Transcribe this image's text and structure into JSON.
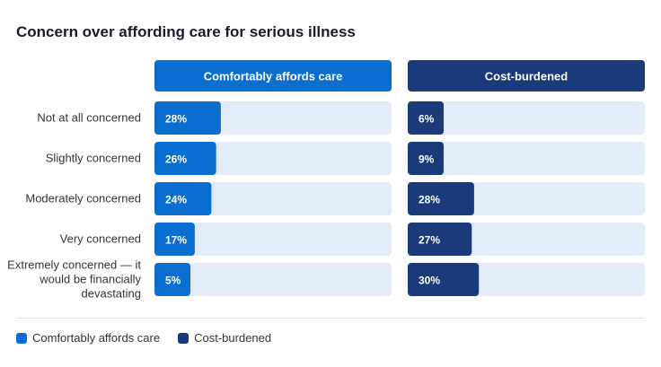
{
  "chart_data": {
    "type": "bar",
    "title": "Concern over affording care for serious illness",
    "categories": [
      "Not at all concerned",
      "Slightly concerned",
      "Moderately concerned",
      "Very concerned",
      "Extremely concerned — it would be financially devastating"
    ],
    "series": [
      {
        "name": "Comfortably affords care",
        "values": [
          28,
          26,
          24,
          17,
          5
        ],
        "color": "#0a6ed1"
      },
      {
        "name": "Cost-burdened",
        "values": [
          6,
          9,
          28,
          27,
          30
        ],
        "color": "#1b3a7a"
      }
    ],
    "xlim": [
      0,
      100
    ],
    "value_suffix": "%",
    "track_color": "#e4ebf8",
    "grid": false,
    "legend_position": "bottom-left"
  }
}
